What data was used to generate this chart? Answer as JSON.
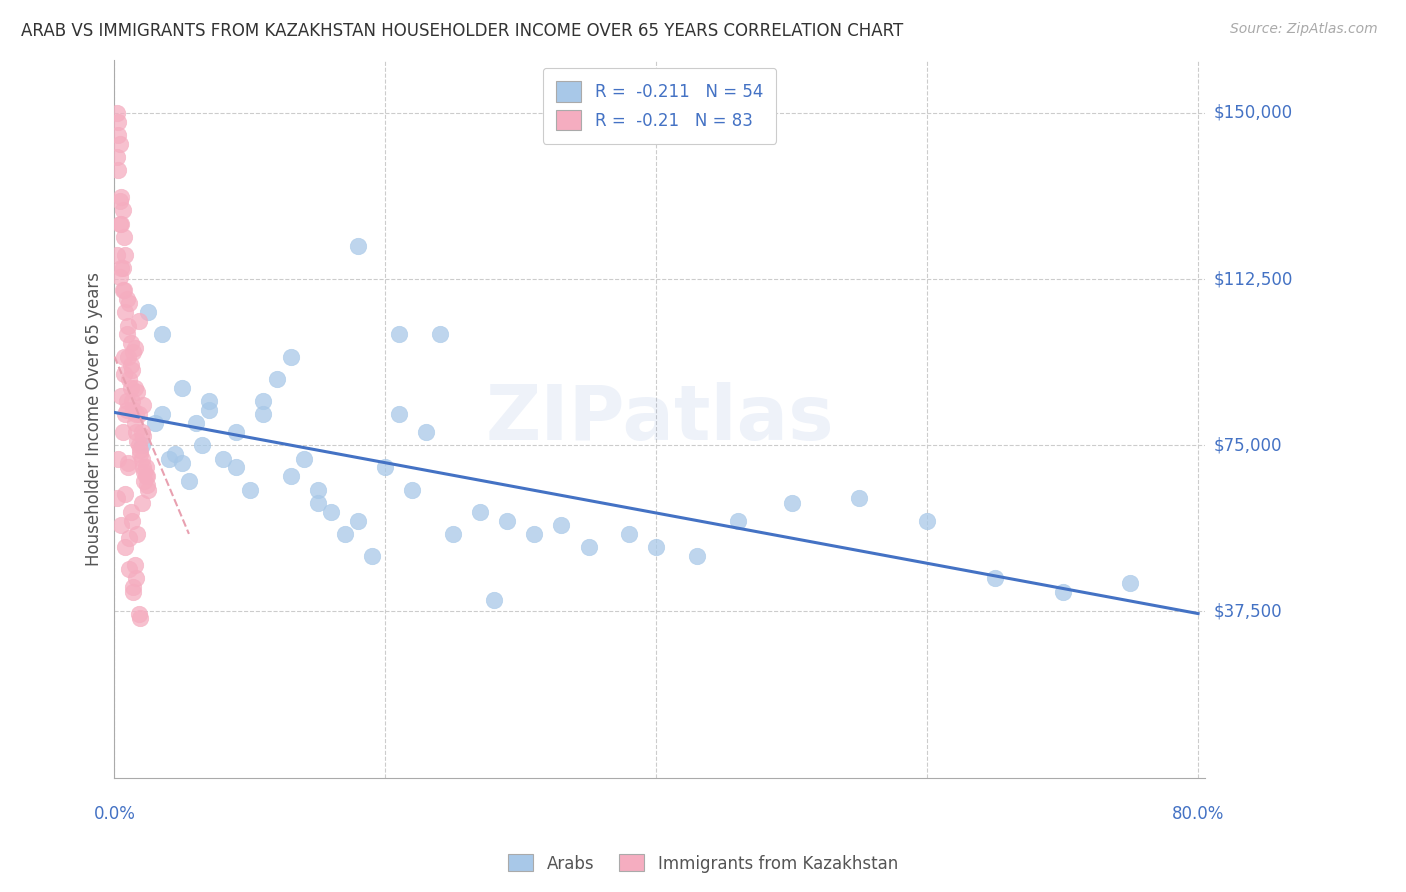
{
  "title": "ARAB VS IMMIGRANTS FROM KAZAKHSTAN HOUSEHOLDER INCOME OVER 65 YEARS CORRELATION CHART",
  "source": "Source: ZipAtlas.com",
  "ylabel": "Householder Income Over 65 years",
  "y_ticks": [
    37500,
    75000,
    112500,
    150000
  ],
  "y_tick_labels": [
    "$37,500",
    "$75,000",
    "$112,500",
    "$150,000"
  ],
  "x_min": 0.0,
  "x_max": 0.8,
  "y_min": 0,
  "y_max": 162000,
  "arab_R": -0.211,
  "arab_N": 54,
  "kazakh_R": -0.21,
  "kazakh_N": 83,
  "arab_color": "#a8c8e8",
  "kazakh_color": "#f5adc0",
  "arab_line_color": "#4472c4",
  "watermark": "ZIPatlas",
  "arab_scatter_x": [
    0.02,
    0.03,
    0.035,
    0.04,
    0.045,
    0.05,
    0.055,
    0.06,
    0.065,
    0.07,
    0.08,
    0.09,
    0.1,
    0.11,
    0.12,
    0.13,
    0.14,
    0.15,
    0.16,
    0.17,
    0.18,
    0.19,
    0.2,
    0.21,
    0.22,
    0.23,
    0.25,
    0.27,
    0.29,
    0.31,
    0.33,
    0.35,
    0.38,
    0.4,
    0.43,
    0.46,
    0.5,
    0.55,
    0.6,
    0.65,
    0.7,
    0.75,
    0.025,
    0.035,
    0.05,
    0.07,
    0.09,
    0.11,
    0.13,
    0.15,
    0.18,
    0.21,
    0.24,
    0.28
  ],
  "arab_scatter_y": [
    75000,
    80000,
    82000,
    72000,
    73000,
    71000,
    67000,
    80000,
    75000,
    83000,
    72000,
    70000,
    65000,
    85000,
    90000,
    95000,
    72000,
    65000,
    60000,
    55000,
    58000,
    50000,
    70000,
    82000,
    65000,
    78000,
    55000,
    60000,
    58000,
    55000,
    57000,
    52000,
    55000,
    52000,
    50000,
    58000,
    62000,
    63000,
    58000,
    45000,
    42000,
    44000,
    105000,
    100000,
    88000,
    85000,
    78000,
    82000,
    68000,
    62000,
    120000,
    100000,
    100000,
    40000
  ],
  "kazakh_scatter_x": [
    0.002,
    0.003,
    0.004,
    0.005,
    0.006,
    0.007,
    0.008,
    0.009,
    0.01,
    0.011,
    0.012,
    0.013,
    0.014,
    0.015,
    0.016,
    0.017,
    0.018,
    0.019,
    0.02,
    0.021,
    0.022,
    0.023,
    0.024,
    0.025,
    0.003,
    0.006,
    0.009,
    0.012,
    0.015,
    0.018,
    0.021,
    0.024,
    0.004,
    0.007,
    0.01,
    0.013,
    0.016,
    0.019,
    0.022,
    0.005,
    0.008,
    0.011,
    0.014,
    0.017,
    0.02,
    0.023,
    0.002,
    0.005,
    0.008,
    0.011,
    0.014,
    0.017,
    0.02,
    0.003,
    0.006,
    0.009,
    0.012,
    0.015,
    0.018,
    0.021,
    0.004,
    0.007,
    0.01,
    0.013,
    0.016,
    0.019,
    0.002,
    0.005,
    0.008,
    0.011,
    0.014,
    0.003,
    0.006,
    0.009,
    0.012,
    0.015,
    0.018,
    0.004,
    0.007,
    0.01,
    0.002,
    0.005,
    0.008
  ],
  "kazakh_scatter_y": [
    140000,
    145000,
    130000,
    125000,
    115000,
    110000,
    105000,
    100000,
    95000,
    90000,
    88000,
    85000,
    83000,
    80000,
    78000,
    76000,
    75000,
    73000,
    72000,
    70000,
    69000,
    68000,
    66000,
    65000,
    148000,
    128000,
    108000,
    98000,
    88000,
    82000,
    77000,
    68000,
    143000,
    122000,
    102000,
    92000,
    82000,
    74000,
    67000,
    131000,
    118000,
    107000,
    96000,
    87000,
    78000,
    70000,
    63000,
    57000,
    52000,
    47000,
    43000,
    55000,
    62000,
    72000,
    78000,
    83000,
    93000,
    97000,
    103000,
    84000,
    113000,
    91000,
    71000,
    58000,
    45000,
    36000,
    118000,
    86000,
    64000,
    54000,
    42000,
    137000,
    110000,
    85000,
    60000,
    48000,
    37000,
    125000,
    95000,
    70000,
    150000,
    115000,
    82000
  ],
  "kazakh_regline_x": [
    0.0,
    0.055
  ],
  "kazakh_regline_y": [
    95000,
    55000
  ]
}
